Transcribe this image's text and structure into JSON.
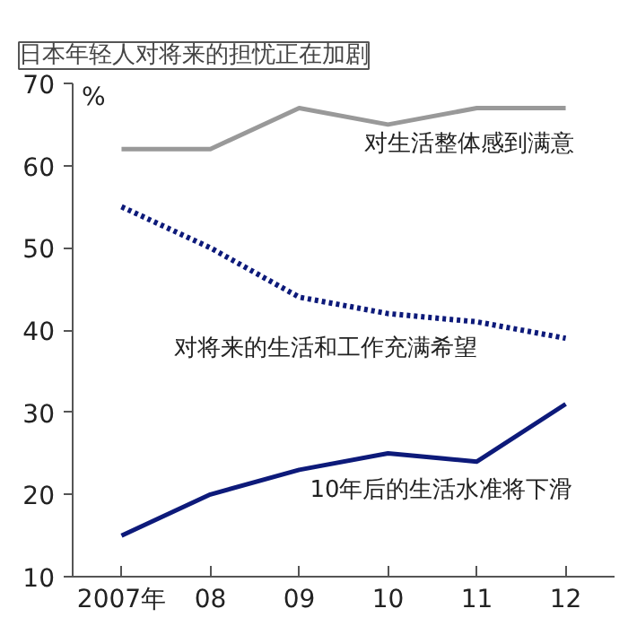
{
  "chart_data": {
    "type": "line",
    "title": "日本年轻人对将来的担忧正在加剧",
    "ylabel": "%",
    "categories": [
      "2007年",
      "08",
      "09",
      "10",
      "11",
      "12"
    ],
    "series": [
      {
        "name": "对生活整体感到满意",
        "color": "#999999",
        "values": [
          62,
          62,
          67,
          65,
          67,
          67
        ],
        "line_style": "solid"
      },
      {
        "name": "对将来的生活和工作充满希望",
        "color": "#0d1a7a",
        "values": [
          55,
          50,
          44,
          42,
          41,
          39
        ],
        "line_style": "dotted"
      },
      {
        "name": "10年后的生活水准将下滑",
        "color": "#0d1a7a",
        "values": [
          15,
          20,
          23,
          25,
          24,
          31
        ],
        "line_style": "solid"
      }
    ],
    "ylim": [
      10,
      70
    ],
    "yticks": [
      10,
      20,
      30,
      40,
      50,
      60,
      70
    ],
    "grid": false,
    "marker": "none"
  }
}
